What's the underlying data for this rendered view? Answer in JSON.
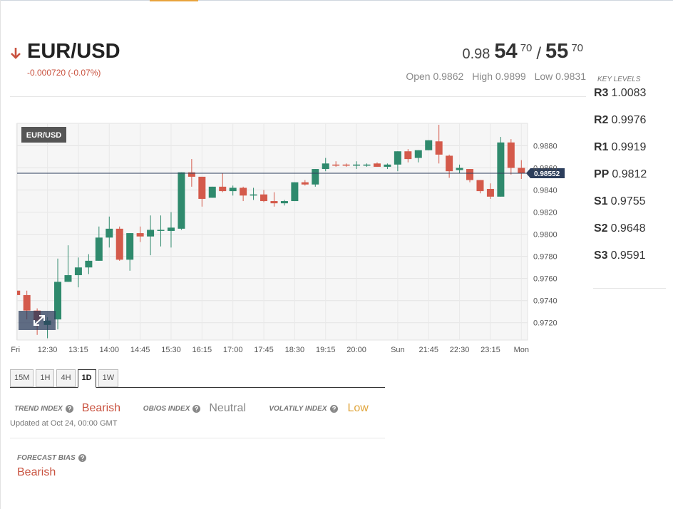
{
  "header": {
    "pair": "EUR/USD",
    "change": "-0.000720 (-0.07%)",
    "bid_big": "0.98",
    "bid_main": "54",
    "bid_pip": "70",
    "separator": "/",
    "ask_main": "55",
    "ask_pip": "70",
    "open_label": "Open",
    "open": "0.9862",
    "high_label": "High",
    "high": "0.9899",
    "low_label": "Low",
    "low": "0.9831"
  },
  "key_levels": {
    "title": "KEY LEVELS",
    "levels": [
      {
        "name": "R3",
        "value": "1.0083"
      },
      {
        "name": "R2",
        "value": "0.9976"
      },
      {
        "name": "R1",
        "value": "0.9919"
      },
      {
        "name": "PP",
        "value": "0.9812"
      },
      {
        "name": "S1",
        "value": "0.9755"
      },
      {
        "name": "S2",
        "value": "0.9648"
      },
      {
        "name": "S3",
        "value": "0.9591"
      }
    ]
  },
  "chart_data": {
    "type": "candlestick",
    "title": "EUR/USD",
    "categories": [
      "Fri",
      null,
      null,
      "12:30",
      null,
      null,
      "13:15",
      null,
      null,
      "14:00",
      null,
      null,
      "14:45",
      null,
      null,
      "15:30",
      null,
      null,
      "16:15",
      null,
      null,
      "17:00",
      null,
      null,
      "17:45",
      null,
      null,
      "18:30",
      null,
      null,
      "19:15",
      null,
      null,
      "20:00",
      null,
      null,
      null,
      "Sun",
      null,
      null,
      "21:45",
      null,
      null,
      "22:30",
      null,
      null,
      "23:15",
      null,
      null,
      "Mon"
    ],
    "open": [
      0.9749,
      0.9745,
      0.9731,
      0.9718,
      0.9723,
      0.9757,
      0.9763,
      0.977,
      0.9776,
      0.9797,
      0.9805,
      0.9777,
      0.9801,
      0.9798,
      0.9803,
      0.9803,
      0.9805,
      0.9856,
      0.9852,
      0.9833,
      0.9843,
      0.9839,
      0.9842,
      0.9835,
      0.9836,
      0.983,
      0.9828,
      0.983,
      0.9847,
      0.9845,
      0.9859,
      0.9863,
      0.9863,
      0.9862,
      0.9862,
      0.9864,
      0.9861,
      0.9863,
      0.9875,
      0.9869,
      0.9876,
      0.9884,
      0.9871,
      0.9858,
      0.9859,
      0.9849,
      0.9841,
      0.9834,
      0.9883,
      0.986
    ],
    "high": [
      0.975,
      0.9749,
      0.9733,
      0.9725,
      0.9778,
      0.979,
      0.9779,
      0.9782,
      0.9807,
      0.9816,
      0.9807,
      0.9801,
      0.9807,
      0.9817,
      0.9817,
      0.982,
      0.9856,
      0.9868,
      0.9852,
      0.9843,
      0.9855,
      0.9844,
      0.9843,
      0.9842,
      0.984,
      0.9838,
      0.9831,
      0.9847,
      0.9849,
      0.9859,
      0.9869,
      0.9866,
      0.9864,
      0.9866,
      0.9864,
      0.9865,
      0.9864,
      0.9875,
      0.9877,
      0.9876,
      0.9885,
      0.9899,
      0.9872,
      0.9863,
      0.9859,
      0.9849,
      0.9846,
      0.9888,
      0.9886,
      0.9867
    ],
    "low": [
      0.9744,
      0.9723,
      0.9709,
      0.9706,
      0.9714,
      0.9757,
      0.9752,
      0.9764,
      0.9776,
      0.9788,
      0.9776,
      0.9767,
      0.9793,
      0.9781,
      0.9789,
      0.9788,
      0.9804,
      0.9843,
      0.9825,
      0.9833,
      0.9838,
      0.9835,
      0.983,
      0.9831,
      0.9829,
      0.9825,
      0.9826,
      0.983,
      0.9844,
      0.9843,
      0.9857,
      0.9861,
      0.9861,
      0.9859,
      0.9861,
      0.9861,
      0.9859,
      0.9857,
      0.9865,
      0.9865,
      0.9876,
      0.9864,
      0.9851,
      0.9855,
      0.9847,
      0.9837,
      0.9832,
      0.9834,
      0.9854,
      0.985
    ],
    "close": [
      0.9745,
      0.9731,
      0.9722,
      0.9722,
      0.9757,
      0.9763,
      0.977,
      0.9776,
      0.9797,
      0.9805,
      0.9777,
      0.9801,
      0.9798,
      0.9804,
      0.9804,
      0.9806,
      0.9856,
      0.9852,
      0.9832,
      0.9843,
      0.9839,
      0.9842,
      0.9835,
      0.9836,
      0.983,
      0.9828,
      0.983,
      0.9847,
      0.9845,
      0.9859,
      0.9864,
      0.9862,
      0.9862,
      0.9863,
      0.9863,
      0.9861,
      0.9863,
      0.9875,
      0.9868,
      0.9876,
      0.9885,
      0.9872,
      0.9857,
      0.986,
      0.9849,
      0.9839,
      0.9834,
      0.9883,
      0.986,
      0.9855
    ],
    "up_color": "#2f8a6d",
    "down_color": "#d45a4b",
    "ylim": [
      0.9705,
      0.9899
    ],
    "yticks": [
      {
        "value": 0.972,
        "label": "0.9720"
      },
      {
        "value": 0.974,
        "label": "0.9740"
      },
      {
        "value": 0.976,
        "label": "0.9760"
      },
      {
        "value": 0.978,
        "label": "0.9780"
      },
      {
        "value": 0.98,
        "label": "0.9800"
      },
      {
        "value": 0.982,
        "label": "0.9820"
      },
      {
        "value": 0.984,
        "label": "0.9840"
      },
      {
        "value": 0.986,
        "label": "0.9860"
      },
      {
        "value": 0.988,
        "label": "0.9880"
      }
    ],
    "current_price": {
      "value": 0.98552,
      "label": "0.98552"
    },
    "grid": true
  },
  "timeframes": {
    "tabs": [
      "15M",
      "1H",
      "4H",
      "1D",
      "1W"
    ],
    "active": "1D"
  },
  "indices": [
    {
      "label": "TREND INDEX",
      "value": "Bearish"
    },
    {
      "label": "OB/OS INDEX",
      "value": "Neutral"
    },
    {
      "label": "VOLATILY INDEX",
      "value": "Low"
    }
  ],
  "updated": "Updated at Oct 24, 00:00 GMT",
  "forecast": {
    "label": "FORECAST BIAS",
    "value": "Bearish"
  }
}
